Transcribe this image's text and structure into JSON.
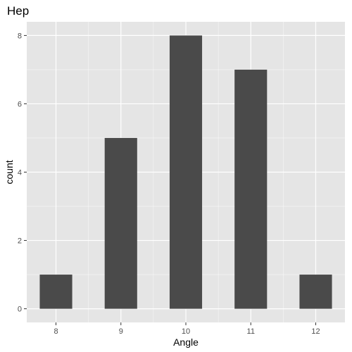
{
  "chart_data": {
    "type": "bar",
    "title": "Hep",
    "xlabel": "Angle",
    "ylabel": "count",
    "bins": [
      {
        "x": 8,
        "count": 1
      },
      {
        "x": 9,
        "count": 5
      },
      {
        "x": 10,
        "count": 8
      },
      {
        "x": 11,
        "count": 7
      },
      {
        "x": 12,
        "count": 1
      }
    ],
    "x_ticks": [
      8,
      9,
      10,
      11,
      12
    ],
    "y_ticks": [
      0,
      2,
      4,
      6,
      8
    ],
    "bar_width": 0.5,
    "xlim": [
      7.55,
      12.45
    ],
    "ylim": [
      -0.4,
      8.4
    ],
    "grid": true,
    "legend": "none",
    "colors": {
      "panel_background": "#e5e5e5",
      "grid_major": "#ffffff",
      "bar_fill": "#4a4a4a",
      "tick_mark": "#333333"
    }
  }
}
